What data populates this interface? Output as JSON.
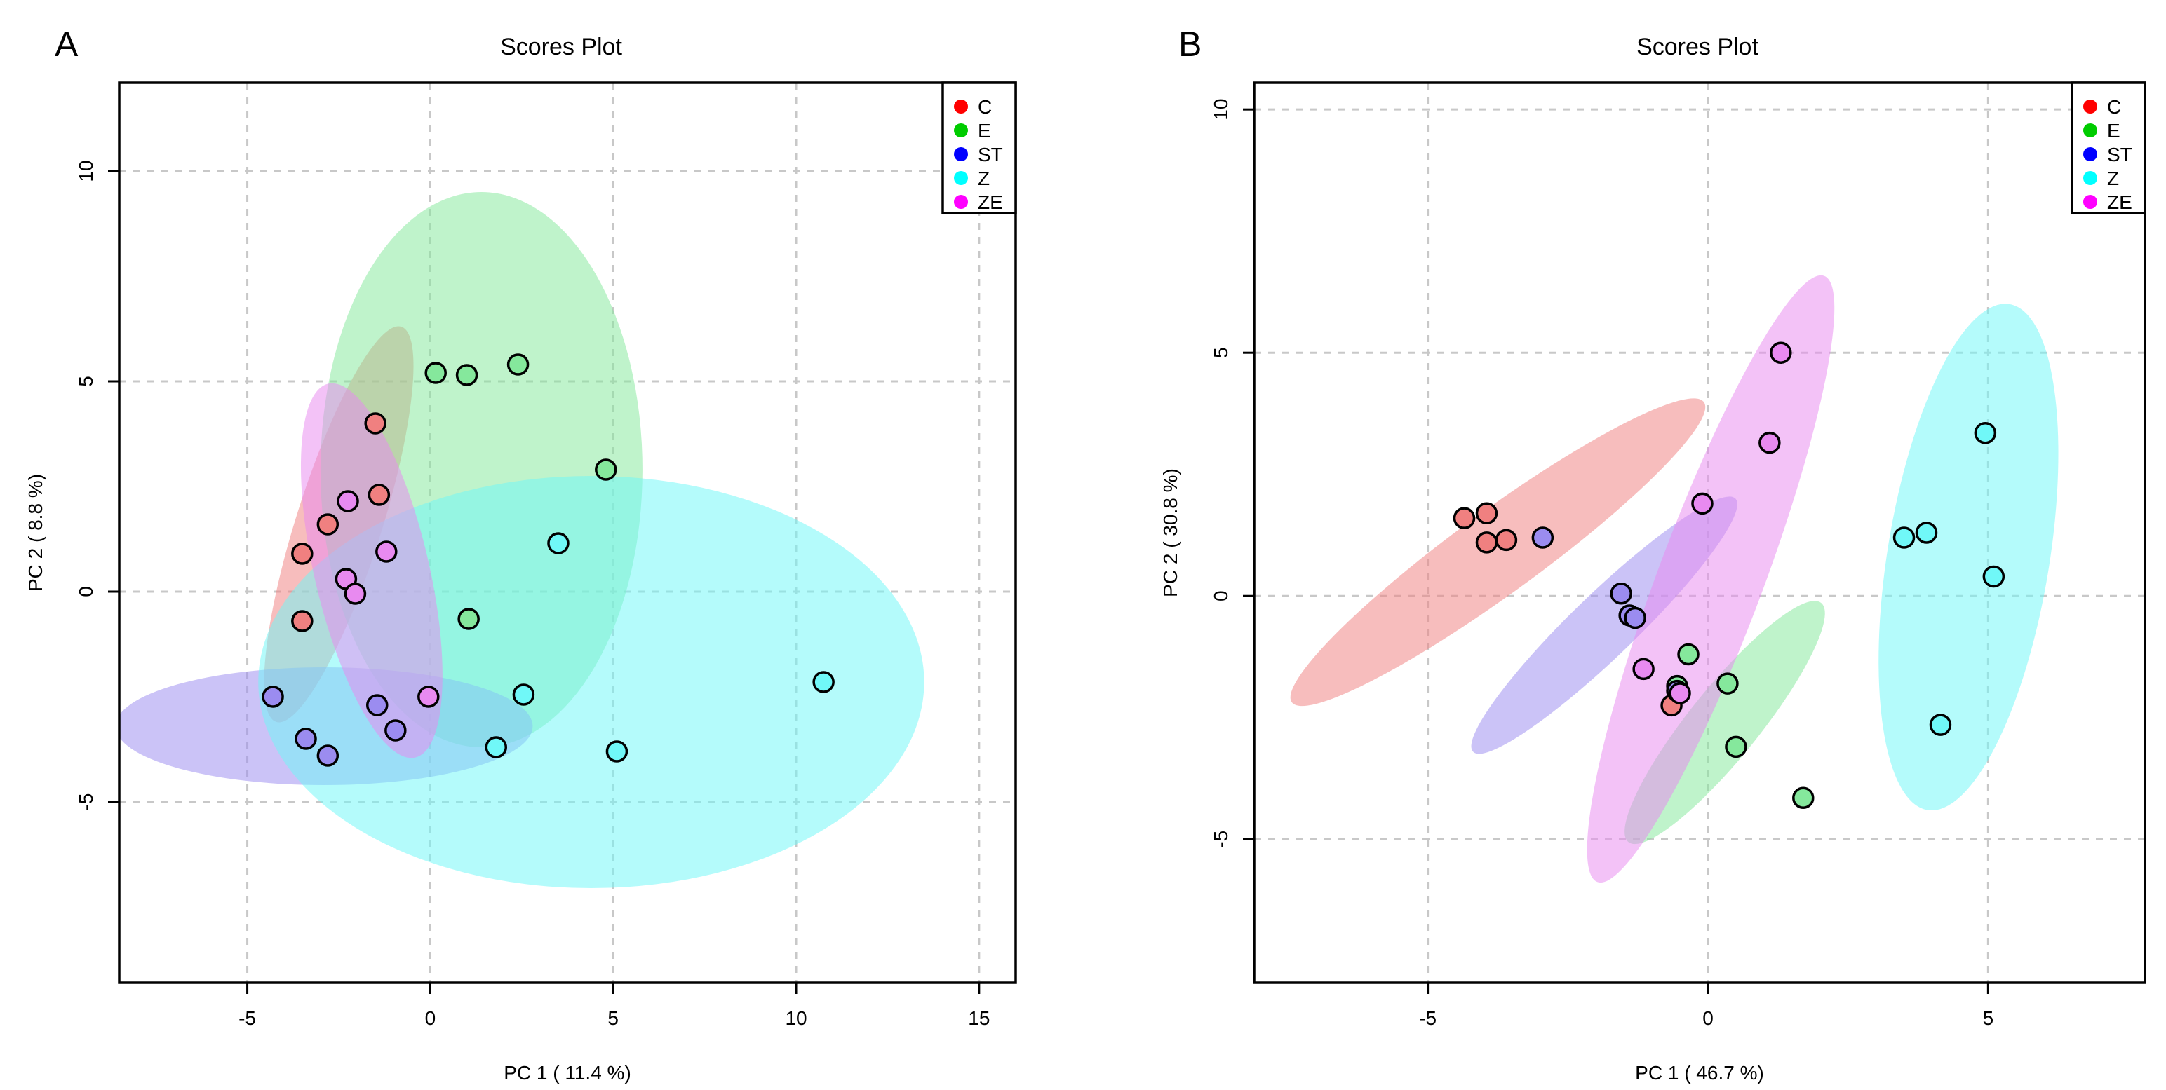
{
  "chart_data": [
    {
      "panel_label": "A",
      "type": "scatter",
      "title": "Scores Plot",
      "xlabel": "PC 1 ( 11.4 %)",
      "ylabel": "PC 2 ( 8.8 %)",
      "xlim": [
        -8.5,
        16.0
      ],
      "ylim": [
        -9.3,
        12.1
      ],
      "xticks": [
        -5,
        0,
        5,
        10,
        15
      ],
      "yticks": [
        -5,
        0,
        5,
        10
      ],
      "grid": true,
      "legend_position": "top-right",
      "series": [
        {
          "name": "C",
          "color": "#ff0000",
          "fill": "#f08080",
          "x": [
            -1.5,
            -1.4,
            -2.8,
            -3.5,
            -3.5
          ],
          "y": [
            4.0,
            2.3,
            1.6,
            0.9,
            -0.7
          ],
          "ellipse": {
            "cx": -2.5,
            "cy": 1.6,
            "rx": 5.0,
            "ry": 1.15,
            "angle": 70
          }
        },
        {
          "name": "E",
          "color": "#00cc00",
          "fill": "#85e89c",
          "x": [
            0.15,
            1.0,
            2.4,
            4.8,
            1.05
          ],
          "y": [
            5.2,
            5.15,
            5.4,
            2.9,
            -0.65
          ],
          "ellipse": {
            "cx": 1.4,
            "cy": 2.9,
            "rx": 4.4,
            "ry": 6.6,
            "angle": 0
          }
        },
        {
          "name": "ST",
          "color": "#0000ff",
          "fill": "#9b8cf0",
          "x": [
            -4.3,
            -1.45,
            -0.95,
            -3.4,
            -2.8
          ],
          "y": [
            -2.5,
            -2.7,
            -3.3,
            -3.5,
            -3.9
          ],
          "ellipse": {
            "cx": -2.9,
            "cy": -3.2,
            "rx": 5.7,
            "ry": 1.4,
            "angle": 0
          }
        },
        {
          "name": "Z",
          "color": "#00ffff",
          "fill": "#70f8f8",
          "x": [
            3.5,
            2.55,
            1.8,
            5.1,
            10.75
          ],
          "y": [
            1.15,
            -2.45,
            -3.7,
            -3.8,
            -2.15
          ],
          "ellipse": {
            "cx": 4.4,
            "cy": -2.15,
            "rx": 9.1,
            "ry": 4.9,
            "angle": 0
          }
        },
        {
          "name": "ZE",
          "color": "#ff00ff",
          "fill": "#e88af0",
          "x": [
            -2.25,
            -1.2,
            -2.3,
            -2.05,
            -0.05
          ],
          "y": [
            2.15,
            0.95,
            0.3,
            -0.05,
            -2.5
          ],
          "ellipse": {
            "cx": -1.6,
            "cy": 0.5,
            "rx": 4.6,
            "ry": 1.55,
            "angle": -75
          }
        }
      ]
    },
    {
      "panel_label": "B",
      "type": "scatter",
      "title": "Scores Plot",
      "xlabel": "PC 1 ( 46.7 %)",
      "ylabel": "PC 2 ( 30.8 %)",
      "xlim": [
        -8.1,
        7.8
      ],
      "ylim": [
        -7.95,
        10.55
      ],
      "xticks": [
        -5,
        0,
        5
      ],
      "yticks": [
        -5,
        0,
        5,
        10
      ],
      "grid": true,
      "legend_position": "top-right",
      "series": [
        {
          "name": "C",
          "color": "#ff0000",
          "fill": "#f08080",
          "x": [
            -4.35,
            -3.95,
            -3.6,
            -3.95,
            -0.65
          ],
          "y": [
            1.6,
            1.7,
            1.15,
            1.1,
            -2.25
          ],
          "ellipse": {
            "cx": -3.75,
            "cy": 0.9,
            "rx": 4.8,
            "ry": 0.8,
            "angle": 40
          }
        },
        {
          "name": "E",
          "color": "#00cc00",
          "fill": "#85e89c",
          "x": [
            -0.35,
            0.35,
            -0.55,
            0.5,
            1.7
          ],
          "y": [
            -1.2,
            -1.8,
            -1.85,
            -3.1,
            -4.15
          ],
          "ellipse": {
            "cx": 0.3,
            "cy": -2.6,
            "rx": 3.0,
            "ry": 0.65,
            "angle": 55
          }
        },
        {
          "name": "ST",
          "color": "#0000ff",
          "fill": "#9b8cf0",
          "x": [
            -2.95,
            -1.55,
            -1.4,
            -1.3,
            -0.55
          ],
          "y": [
            1.2,
            0.05,
            -0.4,
            -0.45,
            -1.95
          ],
          "ellipse": {
            "cx": -1.85,
            "cy": -0.6,
            "rx": 3.5,
            "ry": 0.6,
            "angle": 48
          }
        },
        {
          "name": "Z",
          "color": "#00ffff",
          "fill": "#70f8f8",
          "x": [
            4.95,
            3.5,
            3.9,
            5.1,
            4.15
          ],
          "y": [
            3.35,
            1.2,
            1.3,
            0.4,
            -2.65
          ],
          "ellipse": {
            "cx": 4.65,
            "cy": 0.8,
            "rx": 5.25,
            "ry": 1.45,
            "angle": 82
          }
        },
        {
          "name": "ZE",
          "color": "#ff00ff",
          "fill": "#e88af0",
          "x": [
            1.3,
            1.1,
            -0.1,
            -1.15,
            -0.5
          ],
          "y": [
            5.0,
            3.15,
            1.9,
            -1.5,
            -2.0
          ],
          "ellipse": {
            "cx": 0.05,
            "cy": 0.35,
            "rx": 6.55,
            "ry": 0.95,
            "angle": 72
          }
        }
      ]
    }
  ]
}
